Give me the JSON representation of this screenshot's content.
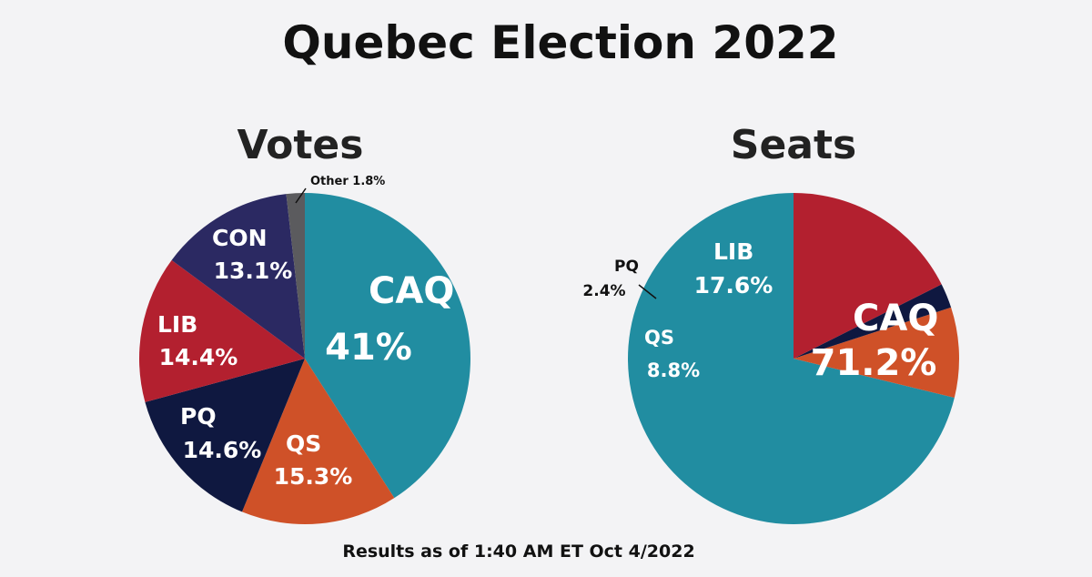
{
  "title": "Quebec Election 2022",
  "footnote": "Results as of 1:40 AM ET Oct 4/2022",
  "colors": {
    "CAQ": "#218da1",
    "QS": "#cf5128",
    "PQ": "#0f1840",
    "LIB": "#b3202f",
    "CON": "#2b2962",
    "Other": "#5b5b5e",
    "background": "#f3f3f5"
  },
  "chart_data": [
    {
      "type": "pie",
      "title": "Votes",
      "slices": [
        {
          "label": "CAQ",
          "value": 41,
          "value_label": "41%"
        },
        {
          "label": "QS",
          "value": 15.3,
          "value_label": "15.3%"
        },
        {
          "label": "PQ",
          "value": 14.6,
          "value_label": "14.6%"
        },
        {
          "label": "LIB",
          "value": 14.4,
          "value_label": "14.4%"
        },
        {
          "label": "CON",
          "value": 13.1,
          "value_label": "13.1%"
        },
        {
          "label": "Other",
          "value": 1.8,
          "value_label": "1.8%"
        }
      ]
    },
    {
      "type": "pie",
      "title": "Seats",
      "slices": [
        {
          "label": "CAQ",
          "value": 71.2,
          "value_label": "71.2%"
        },
        {
          "label": "QS",
          "value": 8.8,
          "value_label": "8.8%"
        },
        {
          "label": "PQ",
          "value": 2.4,
          "value_label": "2.4%"
        },
        {
          "label": "LIB",
          "value": 17.6,
          "value_label": "17.6%"
        }
      ]
    }
  ]
}
